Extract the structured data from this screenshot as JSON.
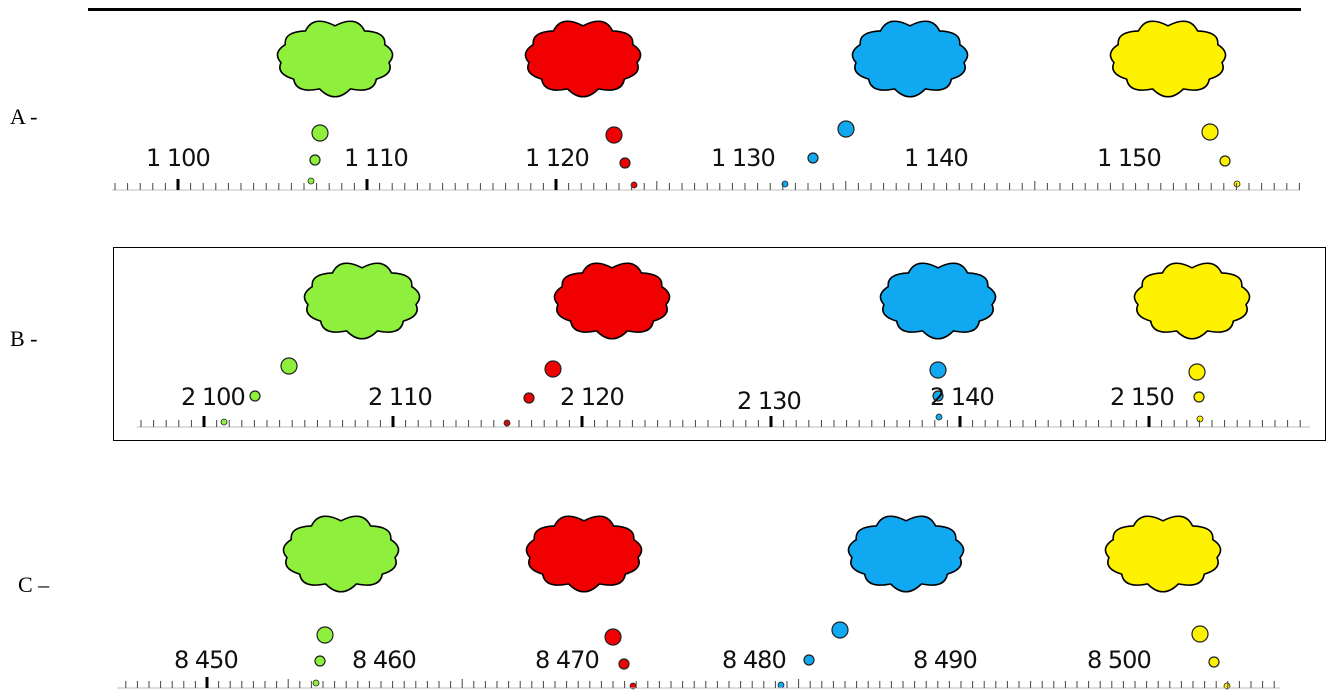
{
  "rows": [
    {
      "label": "A -",
      "numbers": [
        "1 100",
        "1 110",
        "1 120",
        "1 130",
        "1 140",
        "1 150"
      ],
      "clouds": [
        {
          "color": "#8ef03c",
          "name": "green"
        },
        {
          "color": "#f00000",
          "name": "red"
        },
        {
          "color": "#10a8f0",
          "name": "blue"
        },
        {
          "color": "#fff200",
          "name": "yellow"
        }
      ]
    },
    {
      "label": "B -",
      "numbers": [
        "2 100",
        "2 110",
        "2 120",
        "2 130",
        "2 140",
        "2 150"
      ],
      "clouds": [
        {
          "color": "#8ef03c",
          "name": "green"
        },
        {
          "color": "#f00000",
          "name": "red"
        },
        {
          "color": "#10a8f0",
          "name": "blue"
        },
        {
          "color": "#fff200",
          "name": "yellow"
        }
      ]
    },
    {
      "label": "C –",
      "numbers": [
        "8 450",
        "8 460",
        "8 470",
        "8 480",
        "8 490",
        "8 500"
      ],
      "clouds": [
        {
          "color": "#8ef03c",
          "name": "green"
        },
        {
          "color": "#f00000",
          "name": "red"
        },
        {
          "color": "#10a8f0",
          "name": "blue"
        },
        {
          "color": "#fff200",
          "name": "yellow"
        }
      ]
    }
  ]
}
